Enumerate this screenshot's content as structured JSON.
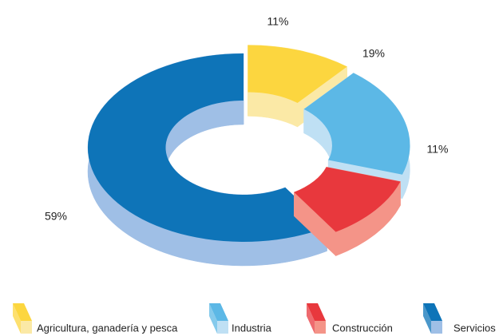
{
  "chart_data": {
    "type": "donut3d",
    "categories": [
      "Agricultura, ganadería y pesca",
      "Industria",
      "Construcción",
      "Servicios"
    ],
    "values": [
      11,
      19,
      11,
      59
    ],
    "value_labels": [
      "11%",
      "19%",
      "11%",
      "59%"
    ],
    "colors": [
      "#fcd63f",
      "#5cb8e6",
      "#e8383d",
      "#0e74b8"
    ],
    "side_colors": [
      "#fbe9a6",
      "#bfe0f4",
      "#f49488",
      "#9fbfe6"
    ],
    "legend": "bottom"
  }
}
